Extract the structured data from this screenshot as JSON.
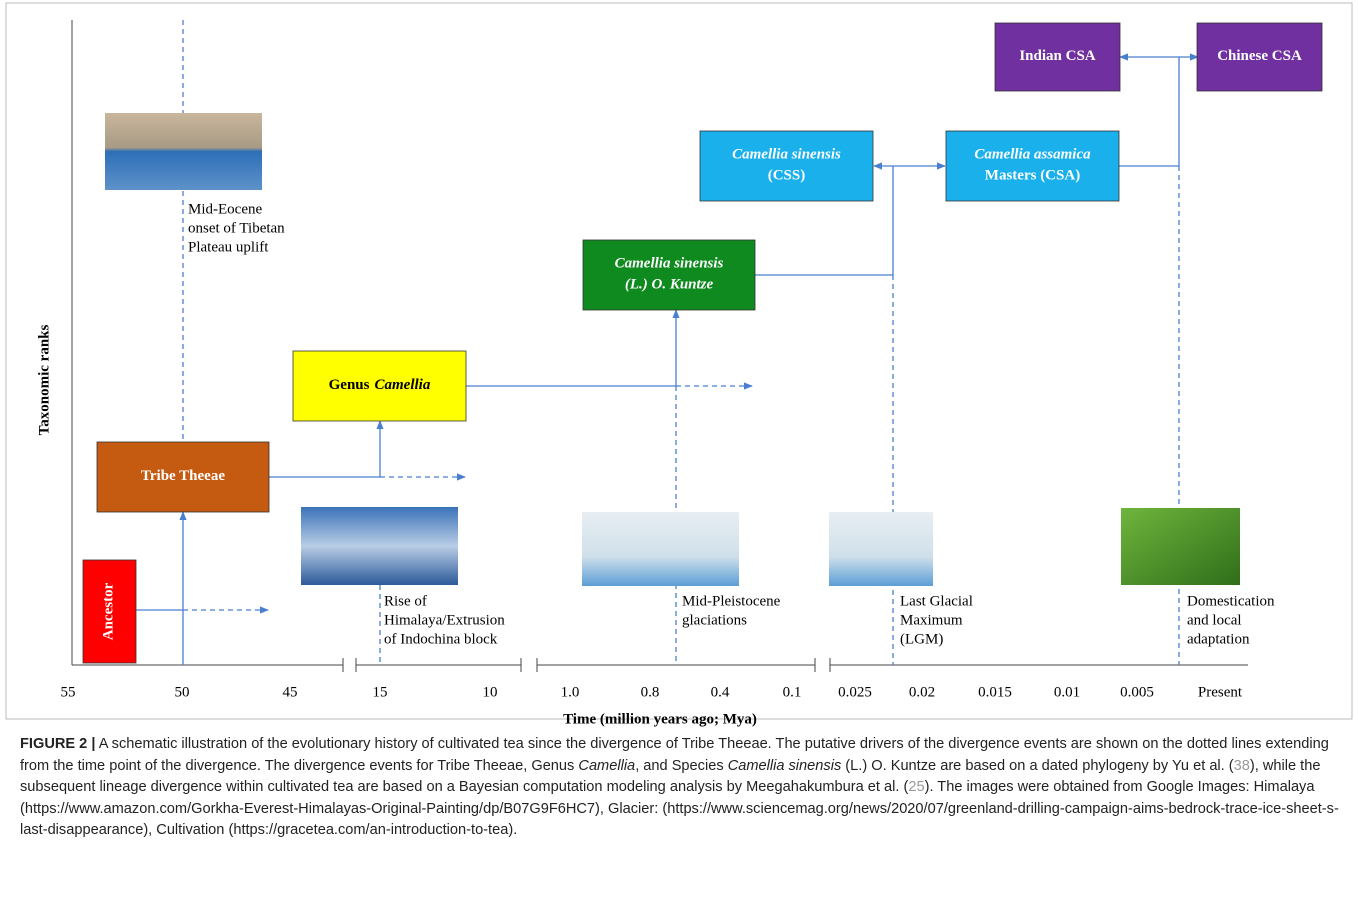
{
  "axis": {
    "y_label": "Taxonomic ranks",
    "x_label": "Time (million years ago; Mya)",
    "ticks": [
      "55",
      "50",
      "45",
      "15",
      "10",
      "1.0",
      "0.8",
      "0.4",
      "0.1",
      "0.025",
      "0.02",
      "0.015",
      "0.01",
      "0.005",
      "Present"
    ]
  },
  "nodes": [
    {
      "lines": [
        "Ancestor"
      ]
    },
    {
      "lines": [
        "Tribe Theeae"
      ]
    },
    {
      "lines": [
        "Genus",
        "Camellia"
      ]
    },
    {
      "lines": [
        "Camellia sinensis",
        "(L.) O. Kuntze"
      ]
    },
    {
      "lines": [
        "Camellia sinensis",
        "(CSS)"
      ]
    },
    {
      "lines": [
        "Camellia assamica",
        "Masters (CSA)"
      ]
    },
    {
      "lines": [
        "Indian CSA"
      ]
    },
    {
      "lines": [
        "Chinese CSA"
      ]
    }
  ],
  "events": [
    {
      "lines": [
        "Mid-Eocene",
        "onset of Tibetan",
        "Plateau uplift"
      ]
    },
    {
      "lines": [
        "Rise of",
        "Himalaya/Extrusion",
        "of Indochina block"
      ]
    },
    {
      "lines": [
        "Mid-Pleistocene",
        "glaciations"
      ]
    },
    {
      "lines": [
        "Last Glacial",
        "Maximum",
        "(LGM)"
      ]
    },
    {
      "lines": [
        "Domestication",
        "and local",
        "adaptation"
      ]
    }
  ],
  "caption": {
    "label": "FIGURE 2 |",
    "parts": [
      "A schematic illustration of the evolutionary history of cultivated tea since the divergence of Tribe Theeae. The putative drivers of the divergence events are shown on the dotted lines extending from the time point of the divergence. The divergence events for Tribe Theeae, Genus ",
      "Camellia",
      ", and Species ",
      "Camellia sinensis",
      " (L.) O. Kuntze are based on a dated phylogeny by Yu et al. (",
      "38",
      "), while the subsequent lineage divergence within cultivated tea are based on a Bayesian computation modeling analysis by Meegahakumbura et al. (",
      "25",
      "). The images were obtained from Google Images: Himalaya (https://www.amazon.com/Gorkha-Everest-Himalayas-Original-Painting/dp/B07G9F6HC7), Glacier: (https://www.sciencemag.org/news/2020/07/greenland-drilling-campaign-aims-bedrock-trace-ice-sheet-s-last-disappearance), Cultivation (https://gracetea.com/an-introduction-to-tea)."
    ]
  }
}
